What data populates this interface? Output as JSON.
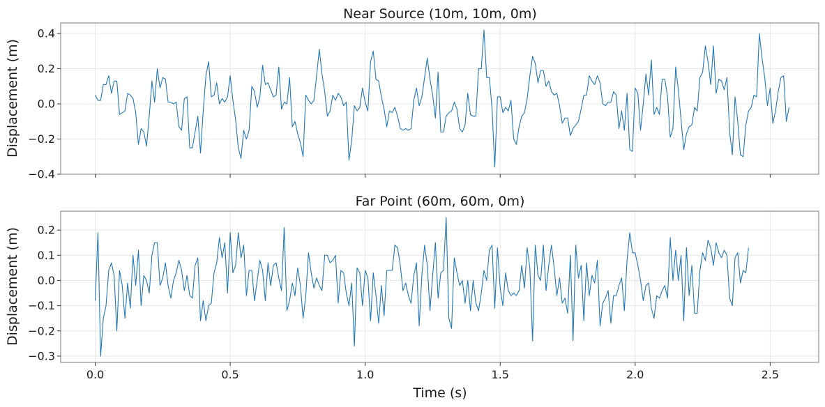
{
  "chart_data": [
    {
      "type": "line",
      "title": "Near Source (10m, 10m, 0m)",
      "xlabel": "",
      "ylabel": "Displacement (m)",
      "xlim": [
        -0.128,
        2.68
      ],
      "ylim": [
        -0.4,
        0.46
      ],
      "yticks": [
        -0.4,
        -0.2,
        0.0,
        0.2,
        0.4
      ],
      "ytick_labels": [
        "−0.4",
        "−0.2",
        "0.0",
        "0.2",
        "0.4"
      ],
      "xticks": [
        0.0,
        0.5,
        1.0,
        1.5,
        2.0,
        2.5
      ],
      "xtick_labels": [],
      "grid": true,
      "color": "#1f77b4",
      "x_start": 0.0,
      "x_step": 0.01,
      "values": [
        0.05,
        0.02,
        0.02,
        0.11,
        0.11,
        0.16,
        0.06,
        0.13,
        0.13,
        -0.06,
        -0.05,
        -0.04,
        0.06,
        0.05,
        0.03,
        -0.05,
        -0.23,
        -0.14,
        -0.16,
        -0.24,
        -0.07,
        0.13,
        0.01,
        0.2,
        0.09,
        0.15,
        0.14,
        0.01,
        0.01,
        0.0,
        0.01,
        -0.13,
        -0.15,
        0.03,
        0.04,
        -0.25,
        -0.25,
        -0.16,
        -0.07,
        -0.28,
        -0.04,
        0.16,
        0.24,
        0.04,
        0.05,
        0.12,
        0.0,
        0.03,
        0.01,
        0.04,
        0.16,
        0.02,
        -0.09,
        -0.25,
        -0.31,
        -0.15,
        -0.2,
        -0.15,
        0.1,
        0.07,
        -0.02,
        0.04,
        0.22,
        0.11,
        0.12,
        0.08,
        0.04,
        0.05,
        0.21,
        -0.03,
        0.01,
        0.0,
        0.15,
        -0.13,
        -0.1,
        -0.17,
        -0.22,
        -0.3,
        0.05,
        0.02,
        0.0,
        0.02,
        0.16,
        0.31,
        0.17,
        0.07,
        -0.07,
        -0.04,
        0.05,
        0.02,
        0.06,
        0.04,
        -0.01,
        0.01,
        -0.32,
        -0.21,
        -0.01,
        -0.04,
        -0.02,
        0.09,
        0.01,
        -0.04,
        0.24,
        0.3,
        0.14,
        0.13,
        0.04,
        -0.03,
        -0.13,
        -0.04,
        -0.05,
        -0.02,
        -0.07,
        -0.14,
        -0.15,
        -0.14,
        -0.15,
        -0.14,
        0.02,
        0.09,
        -0.01,
        0.04,
        0.15,
        0.26,
        0.14,
        0.05,
        -0.08,
        0.18,
        -0.16,
        -0.16,
        -0.07,
        -0.05,
        -0.04,
        0.01,
        -0.03,
        -0.14,
        -0.16,
        -0.12,
        0.06,
        -0.06,
        -0.07,
        -0.07,
        0.2,
        0.2,
        0.42,
        0.15,
        0.15,
        -0.03,
        -0.36,
        0.04,
        0.04,
        -0.05,
        -0.02,
        -0.04,
        0.02,
        -0.2,
        -0.23,
        -0.13,
        -0.07,
        -0.05,
        0.03,
        0.16,
        0.27,
        0.23,
        0.12,
        0.19,
        0.19,
        0.1,
        0.13,
        0.07,
        0.05,
        0.06,
        -0.01,
        -0.11,
        -0.08,
        -0.08,
        -0.18,
        -0.14,
        -0.12,
        -0.1,
        -0.03,
        0.05,
        0.05,
        0.16,
        0.13,
        0.11,
        0.16,
        0.12,
        0.0,
        -0.01,
        0.01,
        0.01,
        0.07,
        0.05,
        -0.14,
        -0.04,
        -0.15,
        0.06,
        -0.26,
        -0.27,
        0.09,
        0.06,
        -0.15,
        0.0,
        0.17,
        0.05,
        0.25,
        -0.06,
        -0.02,
        -0.06,
        0.14,
        0.14,
        0.04,
        -0.19,
        -0.14,
        0.21,
        0.08,
        -0.09,
        -0.26,
        -0.17,
        -0.13,
        -0.12,
        -0.02,
        -0.04,
        0.15,
        0.18,
        0.33,
        0.24,
        0.11,
        0.33,
        0.06,
        0.14,
        0.13,
        0.08,
        0.15,
        -0.16,
        -0.29,
        0.04,
        -0.1,
        -0.29,
        -0.3,
        -0.12,
        -0.04,
        -0.02,
        0.05,
        0.04,
        0.4,
        0.26,
        0.15,
        -0.01,
        0.09,
        -0.11,
        -0.04,
        0.07,
        0.15,
        0.16,
        -0.1,
        -0.02
      ]
    },
    {
      "type": "line",
      "title": "Far Point (60m, 60m, 0m)",
      "xlabel": "Time (s)",
      "ylabel": "Displacement (m)",
      "xlim": [
        -0.128,
        2.68
      ],
      "ylim": [
        -0.325,
        0.275
      ],
      "yticks": [
        -0.3,
        -0.2,
        -0.1,
        0.0,
        0.1,
        0.2
      ],
      "ytick_labels": [
        "−0.3",
        "−0.2",
        "−0.1",
        "0.0",
        "0.1",
        "0.2"
      ],
      "xticks": [
        0.0,
        0.5,
        1.0,
        1.5,
        2.0,
        2.5
      ],
      "xtick_labels": [
        "0.0",
        "0.5",
        "1.0",
        "1.5",
        "2.0",
        "2.5"
      ],
      "grid": true,
      "color": "#1f77b4",
      "x_start": 0.0,
      "x_step": 0.01,
      "values": [
        -0.08,
        0.19,
        -0.3,
        -0.15,
        -0.1,
        0.04,
        0.07,
        0.02,
        -0.2,
        0.04,
        -0.02,
        -0.15,
        -0.01,
        -0.11,
        0.1,
        -0.02,
        0.12,
        -0.1,
        0.02,
        0.0,
        -0.05,
        0.1,
        0.15,
        0.15,
        -0.02,
        0.01,
        0.07,
        -0.02,
        -0.07,
        0.0,
        0.03,
        0.08,
        0.04,
        -0.04,
        0.02,
        -0.06,
        -0.07,
        0.06,
        0.09,
        -0.16,
        -0.08,
        -0.16,
        -0.1,
        -0.09,
        0.03,
        0.07,
        0.17,
        0.09,
        0.15,
        -0.05,
        0.19,
        0.03,
        0.06,
        0.19,
        0.09,
        0.14,
        -0.06,
        0.04,
        0.04,
        -0.08,
        0.0,
        0.08,
        0.04,
        -0.08,
        0.07,
        -0.02,
        0.06,
        0.07,
        0.01,
        -0.04,
        0.21,
        -0.12,
        -0.08,
        -0.01,
        -0.06,
        0.05,
        -0.02,
        -0.15,
        -0.06,
        0.11,
        0.03,
        -0.03,
        0.01,
        -0.02,
        -0.04,
        0.1,
        0.1,
        0.07,
        0.08,
        0.1,
        -0.09,
        0.04,
        0.03,
        -0.05,
        -0.1,
        -0.01,
        -0.26,
        0.05,
        0.03,
        -0.1,
        0.04,
        0.01,
        -0.16,
        0.03,
        -0.06,
        -0.17,
        -0.02,
        -0.14,
        0.04,
        0.04,
        0.04,
        0.14,
        0.13,
        0.06,
        -0.04,
        -0.01,
        -0.06,
        -0.09,
        0.02,
        0.07,
        -0.18,
        0.02,
        0.14,
        0.06,
        -0.12,
        0.02,
        0.15,
        -0.07,
        0.03,
        0.04,
        0.25,
        -0.15,
        -0.19,
        0.09,
        0.03,
        -0.02,
        0.0,
        -0.09,
        0.0,
        -0.12,
        0.0,
        -0.09,
        -0.12,
        -0.05,
        0.04,
        0.0,
        0.12,
        0.14,
        -0.11,
        0.13,
        -0.03,
        -0.1,
        0.03,
        -0.04,
        -0.06,
        -0.05,
        -0.06,
        -0.04,
        0.06,
        -0.03,
        0.13,
        0.05,
        -0.24,
        0.14,
        0.02,
        0.0,
        0.14,
        -0.04,
        0.06,
        0.14,
        0.05,
        -0.06,
        0.01,
        -0.09,
        -0.07,
        -0.13,
        0.1,
        -0.24,
        0.14,
        0.01,
        0.06,
        -0.16,
        0.07,
        -0.06,
        0.02,
        -0.01,
        0.08,
        -0.18,
        -0.09,
        -0.07,
        -0.04,
        -0.17,
        -0.06,
        -0.06,
        -0.02,
        0.01,
        -0.12,
        0.08,
        0.19,
        0.11,
        0.11,
        0.06,
        0.0,
        -0.08,
        -0.02,
        -0.01,
        -0.11,
        -0.15,
        -0.06,
        -0.07,
        -0.04,
        -0.02,
        -0.07,
        0.17,
        0.0,
        0.12,
        0.0,
        0.1,
        -0.16,
        0.13,
        -0.06,
        0.06,
        -0.13,
        -0.13,
        0.04,
        0.11,
        0.08,
        0.16,
        0.13,
        0.06,
        0.15,
        0.11,
        0.09,
        0.12,
        0.1,
        -0.07,
        -0.1,
        0.09,
        0.11,
        -0.01,
        0.04,
        0.03,
        0.13
      ]
    }
  ]
}
